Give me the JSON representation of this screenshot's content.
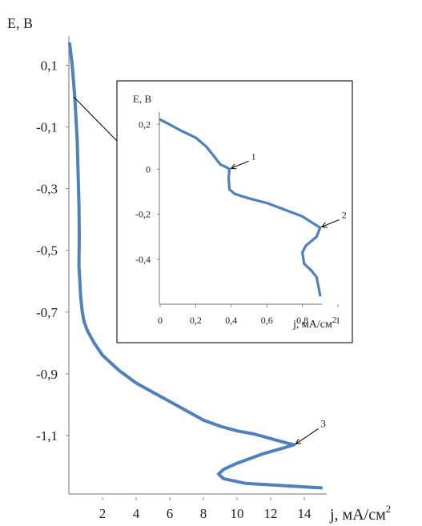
{
  "chart_data": [
    {
      "type": "line",
      "ylabel": "E, В",
      "xlabel": "j, мА/см",
      "xlabel_sup": "2",
      "xlim": [
        0,
        15
      ],
      "ylim": [
        -1.3,
        0.2
      ],
      "x_ticks": [
        "2",
        "4",
        "6",
        "8",
        "10",
        "12",
        "14"
      ],
      "y_ticks": [
        "0,1",
        "-0,1",
        "-0,3",
        "-0,5",
        "-0,7",
        "-0,9",
        "-1,1"
      ],
      "series": [
        {
          "x": [
            0.05,
            0.2,
            0.35,
            0.4,
            0.45,
            0.5,
            0.55,
            0.6,
            0.62,
            0.6,
            0.65,
            0.7,
            0.8,
            0.9,
            1.1,
            1.5,
            2.0,
            3.0,
            4.0,
            5.0,
            6.0,
            7.0,
            8.0,
            9.0,
            10.0,
            11.0,
            12.0,
            13.0,
            13.4,
            12.8,
            11.5,
            10.0,
            9.2,
            8.9,
            9.2,
            10.5,
            12.0,
            13.5,
            15.0
          ],
          "y": [
            0.17,
            0.1,
            0.0,
            -0.05,
            -0.1,
            -0.15,
            -0.25,
            -0.35,
            -0.45,
            -0.55,
            -0.6,
            -0.65,
            -0.7,
            -0.73,
            -0.76,
            -0.8,
            -0.84,
            -0.89,
            -0.93,
            -0.96,
            -0.99,
            -1.02,
            -1.05,
            -1.07,
            -1.085,
            -1.095,
            -1.11,
            -1.125,
            -1.13,
            -1.14,
            -1.16,
            -1.19,
            -1.21,
            -1.225,
            -1.24,
            -1.255,
            -1.26,
            -1.265,
            -1.27
          ]
        }
      ],
      "annotations": [
        {
          "label": "3",
          "x": 13.4,
          "y": -1.13
        }
      ]
    },
    {
      "type": "line",
      "ylabel": "E, В",
      "xlabel": "j, мА/см",
      "xlabel_sup": "2",
      "xlim": [
        0,
        1.0
      ],
      "ylim": [
        -0.6,
        0.25
      ],
      "x_ticks": [
        "0",
        "0,2",
        "0,4",
        "0,6",
        "0,8",
        "1"
      ],
      "y_ticks": [
        "0,2",
        "0",
        "-0,2",
        "-0,4"
      ],
      "series": [
        {
          "x": [
            0.0,
            0.05,
            0.12,
            0.2,
            0.26,
            0.3,
            0.34,
            0.37,
            0.39,
            0.385,
            0.39,
            0.42,
            0.5,
            0.6,
            0.7,
            0.8,
            0.86,
            0.9,
            0.88,
            0.82,
            0.8,
            0.81,
            0.85,
            0.88,
            0.89,
            0.9
          ],
          "y": [
            0.22,
            0.2,
            0.17,
            0.14,
            0.1,
            0.06,
            0.02,
            0.01,
            0.0,
            -0.04,
            -0.09,
            -0.11,
            -0.13,
            -0.15,
            -0.18,
            -0.21,
            -0.24,
            -0.26,
            -0.3,
            -0.34,
            -0.37,
            -0.42,
            -0.45,
            -0.48,
            -0.52,
            -0.56
          ]
        }
      ],
      "annotations": [
        {
          "label": "1",
          "x": 0.39,
          "y": 0.0
        },
        {
          "label": "2",
          "x": 0.9,
          "y": -0.26
        }
      ]
    }
  ]
}
